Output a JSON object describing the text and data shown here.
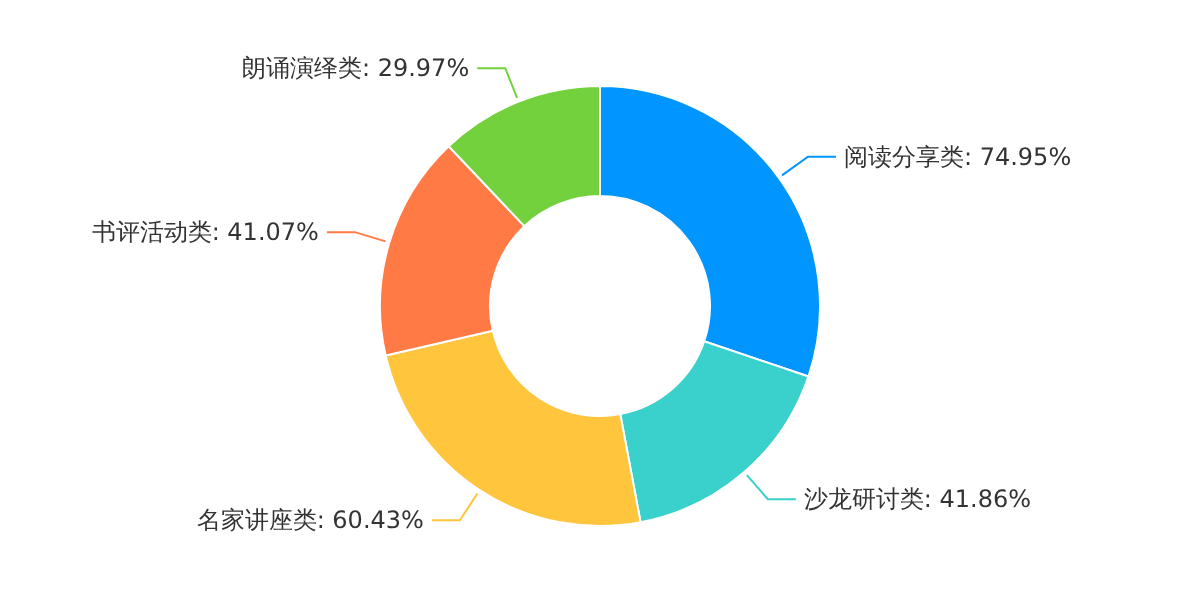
{
  "chart_data": {
    "type": "donut",
    "categories": [
      "阅读分享类",
      "沙龙研讨类",
      "名家讲座类",
      "书评活动类",
      "朗诵演绎类"
    ],
    "values": [
      74.95,
      41.86,
      60.43,
      41.07,
      29.97
    ],
    "value_labels": [
      "74.95%",
      "41.86%",
      "60.43%",
      "41.07%",
      "29.97%"
    ],
    "colors": [
      "#0095ff",
      "#3ad1cc",
      "#ffc53d",
      "#ff7a45",
      "#73d13d"
    ]
  }
}
